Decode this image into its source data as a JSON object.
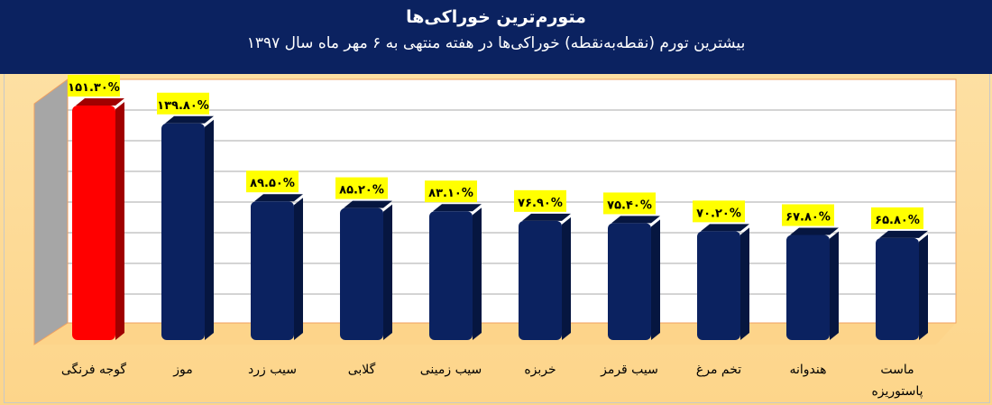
{
  "chart_data": {
    "type": "bar",
    "title": "متورم‌ترین خوراکی‌ها",
    "subtitle": "بیشترین تورم (نقطه‌به‌نقطه) خوراکی‌ها در هفته منتهی به ۶ مهر ماه سال ۱۳۹۷",
    "categories": [
      "گوجه فرنگی",
      "موز",
      "سیب زرد",
      "گلابی",
      "سیب زمینی",
      "خربزه",
      "سیب قرمز",
      "تخم مرغ",
      "هندوانه",
      "ماست پاستوریزه"
    ],
    "values": [
      151.3,
      139.8,
      89.5,
      85.2,
      83.1,
      76.9,
      75.4,
      70.2,
      67.8,
      65.8
    ],
    "data_labels": [
      "۱۵۱.۳۰%",
      "۱۳۹.۸۰%",
      "۸۹.۵۰%",
      "۸۵.۲۰%",
      "۸۳.۱۰%",
      "۷۶.۹۰%",
      "۷۵.۴۰%",
      "۷۰.۲۰%",
      "۶۷.۸۰%",
      "۶۵.۸۰%"
    ],
    "unit": "%",
    "ylim": [
      0,
      160
    ],
    "grid": true,
    "xlabel": "",
    "ylabel": "",
    "colors": {
      "highlight": "#ff0000",
      "bar": "#0b2260",
      "label_bg": "#ffff00"
    }
  }
}
